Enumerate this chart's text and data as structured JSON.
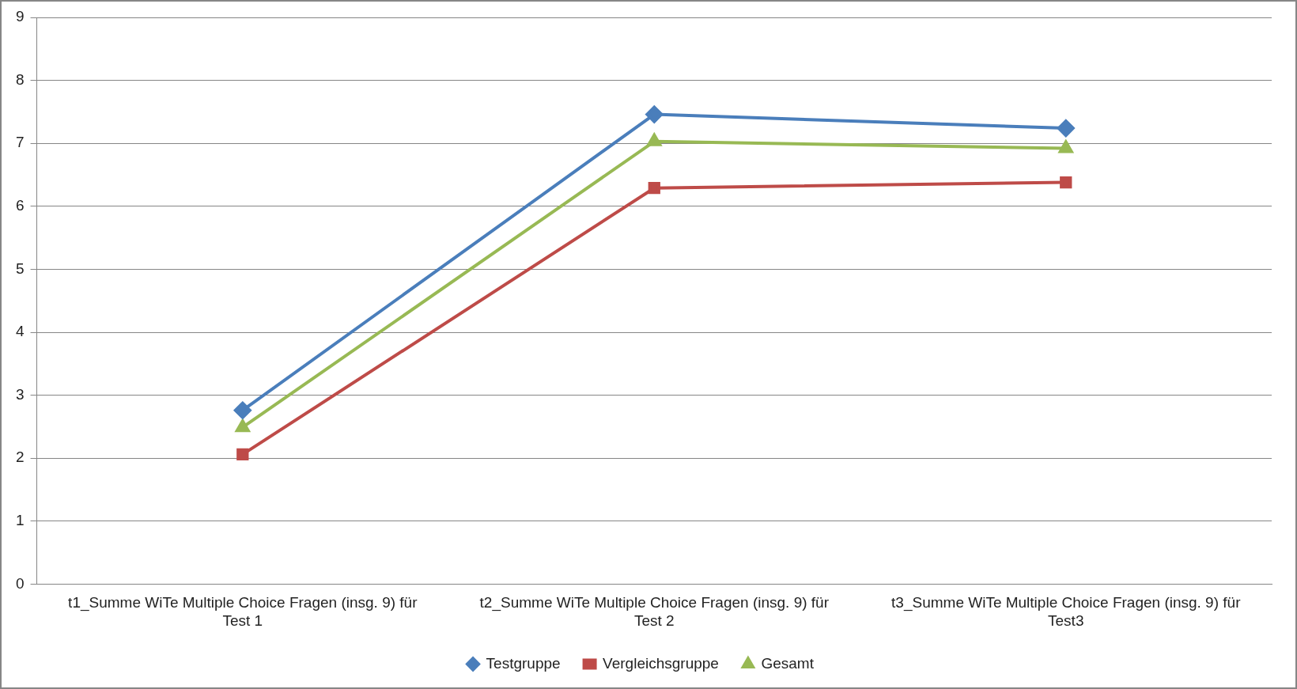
{
  "chart_data": {
    "type": "line",
    "categories": [
      "t1_Summe WiTe Multiple Choice Fragen (insg. 9) für Test 1",
      "t2_Summe WiTe Multiple Choice Fragen (insg. 9) für Test 2",
      "t3_Summe WiTe Multiple Choice Fragen (insg. 9) für Test3"
    ],
    "series": [
      {
        "name": "Testgruppe",
        "color": "#4a7ebb",
        "values": [
          2.76,
          7.46,
          7.24
        ],
        "marker": "diamond"
      },
      {
        "name": "Vergleichsgruppe",
        "color": "#be4b48",
        "values": [
          2.06,
          6.29,
          6.38
        ],
        "marker": "square"
      },
      {
        "name": "Gesamt",
        "color": "#98b954",
        "values": [
          2.49,
          7.03,
          6.92
        ],
        "marker": "triangle"
      }
    ],
    "ylim": [
      0,
      9
    ],
    "yticks": [
      0,
      1,
      2,
      3,
      4,
      5,
      6,
      7,
      8,
      9
    ],
    "grid": "y",
    "legend": "bottom",
    "line_style": "solid"
  }
}
